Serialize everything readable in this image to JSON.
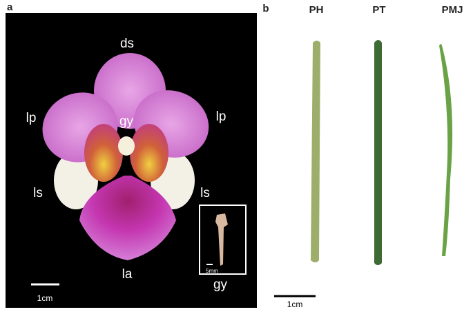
{
  "panel_a": {
    "label": "a",
    "parts": {
      "ds": "ds",
      "lp_left": "lp",
      "lp_right": "lp",
      "gy": "gy",
      "ls_left": "ls",
      "ls_right": "ls",
      "la": "la"
    },
    "scale_bar": "1cm",
    "inset": {
      "scale_bar": "5mm",
      "label": "gy"
    }
  },
  "panel_b": {
    "label": "b",
    "samples": [
      "PH",
      "PT",
      "PMJ"
    ],
    "scale_bar": "1cm"
  }
}
